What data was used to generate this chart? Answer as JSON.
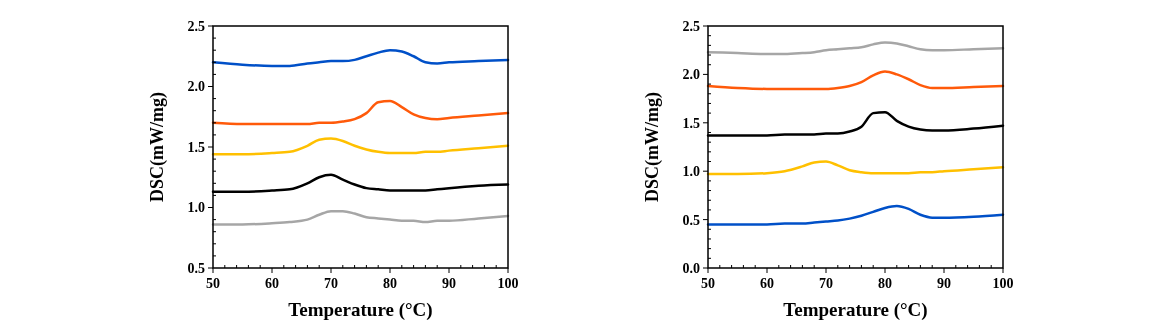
{
  "chart_data": [
    {
      "type": "line",
      "xlabel": "Temperature (°C)",
      "ylabel": "DSC(mW/mg)",
      "x": [
        50,
        55,
        60,
        63,
        66,
        68,
        70,
        72,
        74,
        76,
        78,
        80,
        82,
        84,
        86,
        88,
        90,
        95,
        100
      ],
      "xlim": [
        50,
        100
      ],
      "xticks": [
        50,
        {
          "value": 52,
          "label": null
        },
        {
          "value": 54,
          "label": null
        },
        {
          "value": 56,
          "label": null
        },
        {
          "value": 58,
          "label": null
        },
        60,
        {
          "value": 62,
          "label": null
        },
        {
          "value": 64,
          "label": null
        },
        {
          "value": 66,
          "label": null
        },
        {
          "value": 68,
          "label": null
        },
        70,
        {
          "value": 72,
          "label": null
        },
        {
          "value": 74,
          "label": null
        },
        {
          "value": 76,
          "label": null
        },
        {
          "value": 78,
          "label": null
        },
        80,
        {
          "value": 82,
          "label": null
        },
        {
          "value": 84,
          "label": null
        },
        {
          "value": 86,
          "label": null
        },
        {
          "value": 88,
          "label": null
        },
        90,
        {
          "value": 92,
          "label": null
        },
        {
          "value": 94,
          "label": null
        },
        {
          "value": 96,
          "label": null
        },
        {
          "value": 98,
          "label": null
        },
        100
      ],
      "ylim": [
        0.5,
        2.5
      ],
      "yticks": [
        {
          "value": 0.5,
          "label": "0.5"
        },
        {
          "value": 0.6,
          "label": null
        },
        {
          "value": 0.7,
          "label": null
        },
        {
          "value": 0.8,
          "label": null
        },
        {
          "value": 0.9,
          "label": null
        },
        {
          "value": 1.0,
          "label": "1.0"
        },
        {
          "value": 1.1,
          "label": null
        },
        {
          "value": 1.2,
          "label": null
        },
        {
          "value": 1.3,
          "label": null
        },
        {
          "value": 1.4,
          "label": null
        },
        1.5,
        {
          "value": 1.6,
          "label": null
        },
        {
          "value": 1.7,
          "label": null
        },
        {
          "value": 1.8,
          "label": null
        },
        {
          "value": 1.9,
          "label": null
        },
        {
          "value": 2.0,
          "label": "2.0"
        },
        {
          "value": 2.1,
          "label": null
        },
        {
          "value": 2.2,
          "label": null
        },
        {
          "value": 2.3,
          "label": null
        },
        {
          "value": 2.4,
          "label": null
        },
        2.5
      ],
      "series": [
        {
          "color": "#0050c8",
          "values": [
            2.2,
            2.18,
            2.17,
            2.17,
            2.19,
            2.2,
            2.21,
            2.21,
            2.22,
            2.25,
            2.28,
            2.3,
            2.29,
            2.25,
            2.2,
            2.19,
            2.2,
            2.21,
            2.22
          ]
        },
        {
          "color": "#ff5a0a",
          "values": [
            1.7,
            1.69,
            1.69,
            1.69,
            1.69,
            1.7,
            1.7,
            1.71,
            1.73,
            1.78,
            1.87,
            1.88,
            1.83,
            1.77,
            1.74,
            1.73,
            1.74,
            1.76,
            1.78
          ]
        },
        {
          "color": "#ffc000",
          "values": [
            1.44,
            1.44,
            1.45,
            1.46,
            1.51,
            1.56,
            1.57,
            1.55,
            1.51,
            1.48,
            1.46,
            1.45,
            1.45,
            1.45,
            1.46,
            1.46,
            1.47,
            1.49,
            1.51
          ]
        },
        {
          "color": "#000000",
          "values": [
            1.13,
            1.13,
            1.14,
            1.15,
            1.2,
            1.25,
            1.27,
            1.23,
            1.19,
            1.16,
            1.15,
            1.14,
            1.14,
            1.14,
            1.14,
            1.15,
            1.16,
            1.18,
            1.19
          ]
        },
        {
          "color": "#a6a6a6",
          "values": [
            0.86,
            0.86,
            0.87,
            0.88,
            0.9,
            0.94,
            0.97,
            0.97,
            0.95,
            0.92,
            0.91,
            0.9,
            0.89,
            0.89,
            0.88,
            0.89,
            0.89,
            0.91,
            0.93
          ]
        }
      ]
    },
    {
      "type": "line",
      "xlabel": "Temperature (°C)",
      "ylabel": "DSC(mW/mg)",
      "x": [
        50,
        55,
        60,
        63,
        66,
        68,
        70,
        72,
        74,
        76,
        78,
        80,
        82,
        84,
        86,
        88,
        90,
        95,
        100
      ],
      "xlim": [
        50,
        100
      ],
      "xticks": [
        50,
        {
          "value": 52,
          "label": null
        },
        {
          "value": 54,
          "label": null
        },
        {
          "value": 56,
          "label": null
        },
        {
          "value": 58,
          "label": null
        },
        60,
        {
          "value": 62,
          "label": null
        },
        {
          "value": 64,
          "label": null
        },
        {
          "value": 66,
          "label": null
        },
        {
          "value": 68,
          "label": null
        },
        70,
        {
          "value": 72,
          "label": null
        },
        {
          "value": 74,
          "label": null
        },
        {
          "value": 76,
          "label": null
        },
        {
          "value": 78,
          "label": null
        },
        80,
        {
          "value": 82,
          "label": null
        },
        {
          "value": 84,
          "label": null
        },
        {
          "value": 86,
          "label": null
        },
        {
          "value": 88,
          "label": null
        },
        90,
        {
          "value": 92,
          "label": null
        },
        {
          "value": 94,
          "label": null
        },
        {
          "value": 96,
          "label": null
        },
        {
          "value": 98,
          "label": null
        },
        100
      ],
      "ylim": [
        0,
        2.5
      ],
      "yticks": [
        {
          "value": 0,
          "label": "0.0"
        },
        {
          "value": 0.1,
          "label": null
        },
        {
          "value": 0.2,
          "label": null
        },
        {
          "value": 0.3,
          "label": null
        },
        {
          "value": 0.4,
          "label": null
        },
        0.5,
        {
          "value": 0.6,
          "label": null
        },
        {
          "value": 0.7,
          "label": null
        },
        {
          "value": 0.8,
          "label": null
        },
        {
          "value": 0.9,
          "label": null
        },
        {
          "value": 1.0,
          "label": "1.0"
        },
        {
          "value": 1.1,
          "label": null
        },
        {
          "value": 1.2,
          "label": null
        },
        {
          "value": 1.3,
          "label": null
        },
        {
          "value": 1.4,
          "label": null
        },
        1.5,
        {
          "value": 1.6,
          "label": null
        },
        {
          "value": 1.7,
          "label": null
        },
        {
          "value": 1.8,
          "label": null
        },
        {
          "value": 1.9,
          "label": null
        },
        {
          "value": 2.0,
          "label": "2.0"
        },
        {
          "value": 2.1,
          "label": null
        },
        {
          "value": 2.2,
          "label": null
        },
        {
          "value": 2.3,
          "label": null
        },
        {
          "value": 2.4,
          "label": null
        },
        2.5
      ],
      "series": [
        {
          "color": "#a6a6a6",
          "values": [
            2.23,
            2.22,
            2.21,
            2.21,
            2.22,
            2.23,
            2.25,
            2.26,
            2.27,
            2.28,
            2.31,
            2.33,
            2.32,
            2.29,
            2.26,
            2.25,
            2.25,
            2.26,
            2.27
          ]
        },
        {
          "color": "#ff5a0a",
          "values": [
            1.88,
            1.86,
            1.85,
            1.85,
            1.85,
            1.85,
            1.85,
            1.86,
            1.88,
            1.92,
            1.99,
            2.03,
            2.0,
            1.95,
            1.89,
            1.86,
            1.86,
            1.87,
            1.88
          ]
        },
        {
          "color": "#000000",
          "values": [
            1.37,
            1.37,
            1.37,
            1.38,
            1.38,
            1.38,
            1.39,
            1.39,
            1.41,
            1.46,
            1.6,
            1.61,
            1.52,
            1.46,
            1.43,
            1.42,
            1.42,
            1.44,
            1.47
          ]
        },
        {
          "color": "#ffc000",
          "values": [
            0.97,
            0.97,
            0.98,
            1.0,
            1.05,
            1.09,
            1.1,
            1.06,
            1.01,
            0.99,
            0.98,
            0.98,
            0.98,
            0.98,
            0.99,
            0.99,
            1.0,
            1.02,
            1.04
          ]
        },
        {
          "color": "#0050c8",
          "values": [
            0.45,
            0.45,
            0.45,
            0.46,
            0.46,
            0.47,
            0.48,
            0.49,
            0.51,
            0.54,
            0.58,
            0.62,
            0.64,
            0.61,
            0.55,
            0.52,
            0.52,
            0.53,
            0.55
          ]
        }
      ]
    }
  ]
}
